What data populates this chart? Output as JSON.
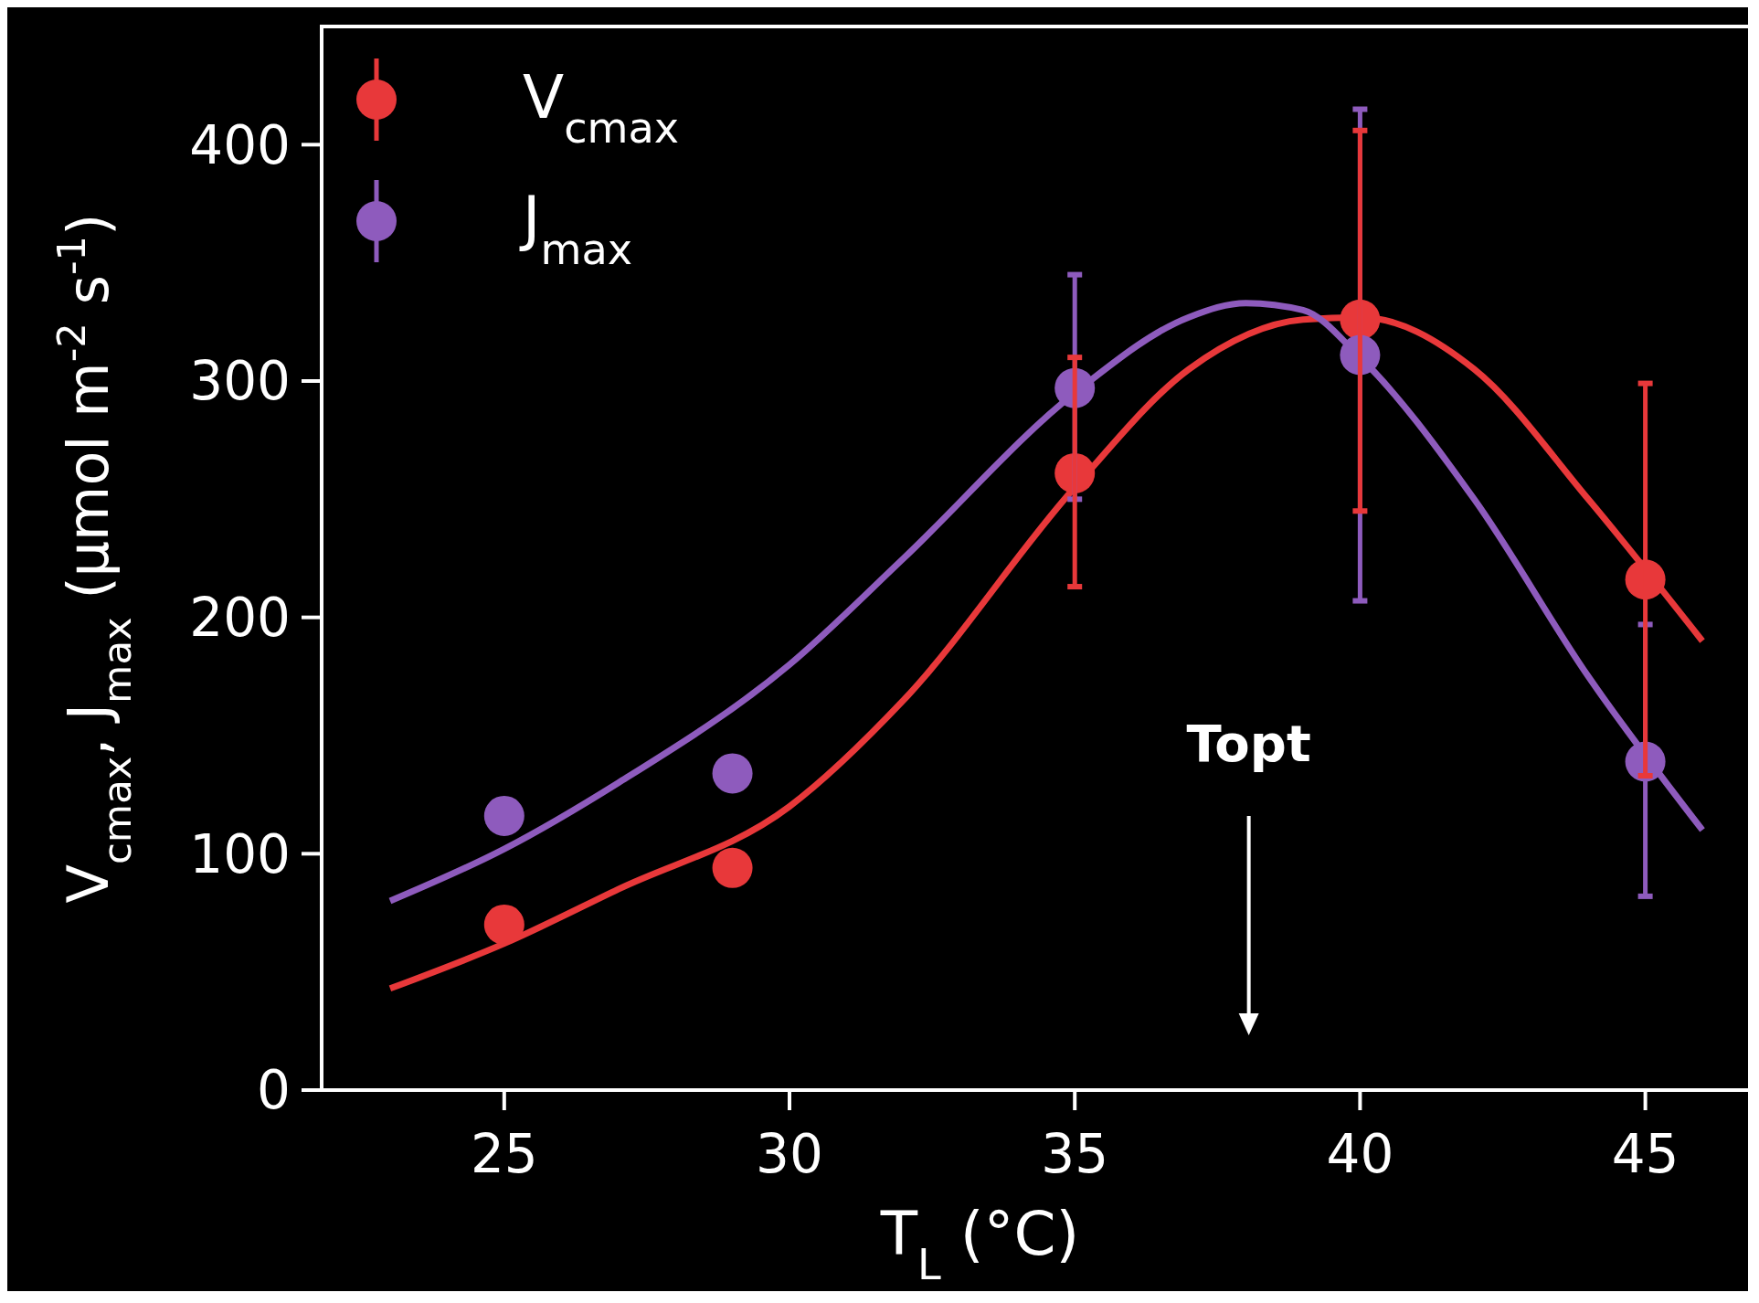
{
  "chart_data": {
    "type": "scatter",
    "xlabel": "T$_{L}$ (°C)",
    "ylabel": "V$_{cmax}$, J$_{max}$ (μmol m$^{-2}$ s$^{-1}$)",
    "xlim": [
      21.8,
      46.8
    ],
    "ylim": [
      0,
      450
    ],
    "xticks": [
      25,
      30,
      35,
      40,
      45
    ],
    "yticks": [
      0,
      100,
      200,
      300,
      400
    ],
    "grid": false,
    "legend": "top left",
    "marker": "circle",
    "annotations": [
      "Topt"
    ],
    "series": [
      {
        "type": "line",
        "color": "#e8383a",
        "marker": "none",
        "x": [
          23,
          25,
          27,
          30,
          32,
          35,
          37,
          39,
          40,
          42,
          44,
          46
        ],
        "values": [
          43,
          62,
          85,
          120,
          165,
          255,
          305,
          326,
          327,
          305,
          250,
          190
        ]
      },
      {
        "type": "line",
        "color": "#8e5bbd",
        "marker": "none",
        "x": [
          23,
          25,
          27,
          30,
          32,
          35,
          37,
          38,
          39,
          40,
          42,
          44,
          46
        ],
        "values": [
          80,
          102,
          130,
          180,
          225,
          295,
          327,
          333,
          330,
          310,
          250,
          175,
          110
        ]
      },
      {
        "name": "V$_{cmax}$",
        "color": "#e8383a",
        "x": [
          25,
          29,
          35,
          40,
          45
        ],
        "values": [
          70,
          94,
          261,
          326,
          216
        ],
        "errors": [
          null,
          null,
          [
            213,
            310
          ],
          [
            245,
            406
          ],
          83
        ]
      },
      {
        "name": "J$_{max}$",
        "color": "#8e5bbd",
        "x": [
          25,
          29,
          35,
          40,
          45
        ],
        "values": [
          116,
          134,
          297,
          311,
          139
        ],
        "errors": [
          null,
          null,
          [
            250,
            345
          ],
          [
            207,
            415
          ],
          [
            82,
            197
          ]
        ]
      }
    ]
  }
}
